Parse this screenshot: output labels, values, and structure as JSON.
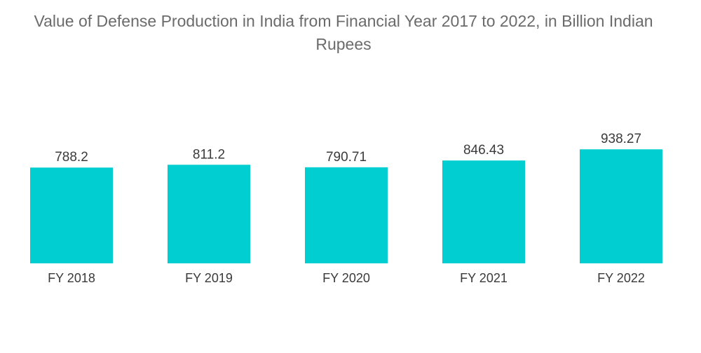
{
  "chart_data": {
    "type": "bar",
    "title": "Value of Defense Production in India from Financial Year 2017 to 2022, in Billion Indian Rupees",
    "categories": [
      "FY 2018",
      "FY 2019",
      "FY 2020",
      "FY 2021",
      "FY 2022"
    ],
    "values": [
      788.2,
      811.2,
      790.71,
      846.43,
      938.27
    ],
    "value_labels": [
      "788.2",
      "811.2",
      "790.71",
      "846.43",
      "938.27"
    ],
    "xlabel": "",
    "ylabel": "",
    "ylim": [
      0,
      1000
    ],
    "grid": false,
    "legend": "none",
    "colors": {
      "bar": "#00ced1",
      "text": "#3a3a3a",
      "title": "#6b6b6b"
    }
  }
}
